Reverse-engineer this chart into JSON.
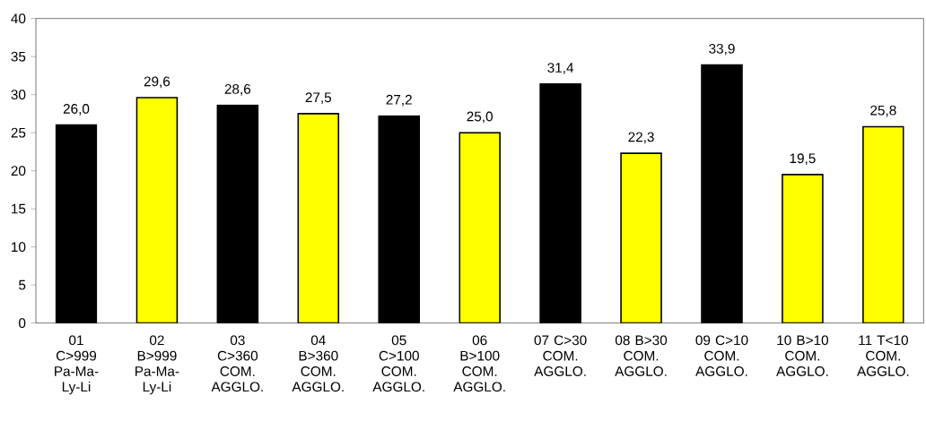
{
  "chart_data": {
    "type": "bar",
    "categories": [
      "01 C>999 Pa-Ma-Ly-Li",
      "02 B>999 Pa-Ma-Ly-Li",
      "03 C>360 COM. AGGLO.",
      "04 B>360 COM. AGGLO.",
      "05 C>100 COM. AGGLO.",
      "06 B>100 COM. AGGLO.",
      "07 C>30 COM. AGGLO.",
      "08 B>30 COM. AGGLO.",
      "09 C>10 COM. AGGLO.",
      "10 B>10 COM. AGGLO.",
      "11 T<10 COM. AGGLO."
    ],
    "values": [
      26.0,
      29.6,
      28.6,
      27.5,
      27.2,
      25.0,
      31.4,
      22.3,
      33.9,
      19.5,
      25.8
    ],
    "value_labels": [
      "26,0",
      "29,6",
      "28,6",
      "27,5",
      "27,2",
      "25,0",
      "31,4",
      "22,3",
      "33,9",
      "19,5",
      "25,8"
    ],
    "colors": [
      "#000000",
      "#ffff00",
      "#000000",
      "#ffff00",
      "#000000",
      "#ffff00",
      "#000000",
      "#ffff00",
      "#000000",
      "#ffff00",
      "#ffff00"
    ],
    "ylim": [
      0,
      40
    ],
    "yticks": [
      0,
      5,
      10,
      15,
      20,
      25,
      30,
      35,
      40
    ],
    "grid": false
  }
}
